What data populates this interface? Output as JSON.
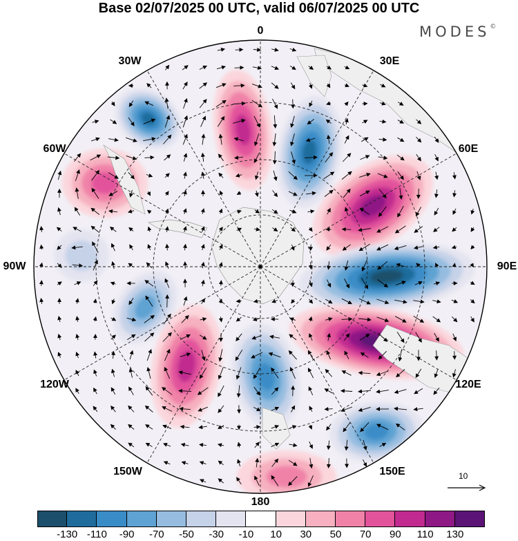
{
  "title": "Base 02/07/2025 00 UTC, valid 06/07/2025 00 UTC",
  "brand": {
    "text": "MODES",
    "mark": "©"
  },
  "map": {
    "projection": "south-polar-stereographic",
    "longitude_labels": {
      "top": "0",
      "upper_left": "30W",
      "upper_right": "30E",
      "left_upper": "60W",
      "right_upper": "60E",
      "left": "90W",
      "right": "90E",
      "left_lower": "120W",
      "right_lower": "120E",
      "lower_left": "150W",
      "lower_right": "150E",
      "bottom": "180"
    },
    "reference_vector": "10",
    "colors": {
      "neg_130": "#1c4f6b",
      "neg_110": "#1f6c9c",
      "neg_90": "#3a8cc7",
      "neg_70": "#5ea3d3",
      "neg_50": "#96bde0",
      "neg_30": "#c5d2e8",
      "neg_10": "#e4e4f0",
      "zero": "#ffffff",
      "pos_10": "#fbd6dc",
      "pos_30": "#f6b0c0",
      "pos_50": "#f082a8",
      "pos_70": "#e2539c",
      "pos_90": "#c12a8f",
      "pos_110": "#8e1985",
      "pos_130": "#5b1476",
      "land": "#efefef"
    },
    "anomaly_cells": [
      {
        "sign": "neg",
        "level": 6,
        "name": "cell-30w"
      },
      {
        "sign": "pos",
        "level": 4,
        "name": "cell-60w"
      },
      {
        "sign": "pos",
        "level": 5,
        "name": "cell-15w"
      },
      {
        "sign": "neg",
        "level": 6,
        "name": "cell-20e"
      },
      {
        "sign": "pos",
        "level": 6,
        "name": "cell-55e"
      },
      {
        "sign": "neg",
        "level": 7,
        "name": "cell-90e"
      },
      {
        "sign": "pos",
        "level": 7,
        "name": "cell-110e"
      },
      {
        "sign": "neg",
        "level": 5,
        "name": "cell-145e"
      },
      {
        "sign": "pos",
        "level": 3,
        "name": "cell-175e"
      },
      {
        "sign": "neg",
        "level": 5,
        "name": "cell-165w"
      },
      {
        "sign": "pos",
        "level": 5,
        "name": "cell-140w"
      },
      {
        "sign": "neg",
        "level": 4,
        "name": "cell-115w"
      },
      {
        "sign": "neg",
        "level": 2,
        "name": "cell-95w"
      }
    ]
  },
  "colorbar": {
    "colors": [
      "#1c4f6b",
      "#1f6c9c",
      "#3a8cc7",
      "#5ea3d3",
      "#96bde0",
      "#c5d2e8",
      "#e4e4f0",
      "#ffffff",
      "#fbd6dc",
      "#f6b0c0",
      "#f082a8",
      "#e2539c",
      "#c12a8f",
      "#8e1985",
      "#5b1476"
    ],
    "ticks": [
      "-130",
      "-110",
      "-90",
      "-70",
      "-50",
      "-30",
      "-10",
      "10",
      "30",
      "50",
      "70",
      "90",
      "110",
      "130"
    ]
  }
}
